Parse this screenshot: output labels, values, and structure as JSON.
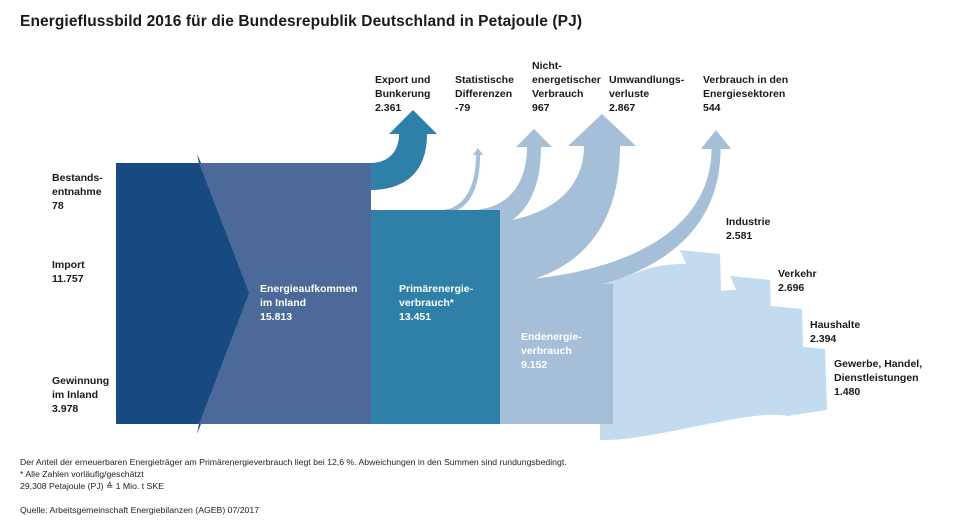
{
  "title": "Energieflussbild 2016 für die Bundesrepublik Deutschland in Petajoule (PJ)",
  "colors": {
    "aufkommen_input": "#174a80",
    "aufkommen_inland": "#4c6a99",
    "primaer": "#2e80a9",
    "export": "#2e80a9",
    "losses": "#a4bfd7",
    "endenergie": "#a4bfd7",
    "sectors": "#c3dbee"
  },
  "inputs": [
    {
      "label_lines": [
        "Bestands-",
        "entnahme"
      ],
      "value": "78"
    },
    {
      "label_lines": [
        "Import"
      ],
      "value": "11.757"
    },
    {
      "label_lines": [
        "Gewinnung",
        "im Inland"
      ],
      "value": "3.978"
    }
  ],
  "blocks": [
    {
      "label_lines": [
        "Energieaufkommen",
        "im Inland"
      ],
      "value": "15.813"
    },
    {
      "label_lines": [
        "Primärenergie-",
        "verbrauch*"
      ],
      "value": "13.451"
    },
    {
      "label_lines": [
        "Endenergie-",
        "verbrauch"
      ],
      "value": "9.152"
    }
  ],
  "outflows": [
    {
      "label_lines": [
        "Export und",
        "Bunkerung"
      ],
      "value": "2.361"
    },
    {
      "label_lines": [
        "Statistische",
        "Differenzen"
      ],
      "value": "-79"
    },
    {
      "label_lines": [
        "Nicht-",
        "energetischer",
        "Verbrauch"
      ],
      "value": "967"
    },
    {
      "label_lines": [
        "Umwandlungs-",
        "verluste"
      ],
      "value": "2.867"
    },
    {
      "label_lines": [
        "Verbrauch in den",
        "Energiesektoren"
      ],
      "value": "544"
    }
  ],
  "sectors": [
    {
      "label_lines": [
        "Industrie"
      ],
      "value": "2.581"
    },
    {
      "label_lines": [
        "Verkehr"
      ],
      "value": "2.696"
    },
    {
      "label_lines": [
        "Haushalte"
      ],
      "value": "2.394"
    },
    {
      "label_lines": [
        "Gewerbe, Handel,",
        "Dienstleistungen"
      ],
      "value": "1.480"
    }
  ],
  "footnotes": {
    "line1": "Der Anteil der erneuerbaren Energieträger am Primärenergieverbrauch liegt bei 12,6 %. Abweichungen in den Summen sind rundungsbedingt.",
    "line2": "* Alle Zahlen vorläufig/geschätzt",
    "line3": "29,308 Petajoule (PJ) ≙ 1 Mio. t SKE",
    "source": "Quelle: Arbeitsgemeinschaft Energiebilanzen (AGEB) 07/2017"
  },
  "chart_data": {
    "type": "sankey",
    "title": "Energieflussbild 2016 für die Bundesrepublik Deutschland in Petajoule (PJ)",
    "unit": "PJ",
    "nodes": [
      "Bestandsentnahme",
      "Import",
      "Gewinnung im Inland",
      "Energieaufkommen im Inland",
      "Primärenergieverbrauch",
      "Endenergieverbrauch",
      "Export und Bunkerung",
      "Statistische Differenzen",
      "Nichtenergetischer Verbrauch",
      "Umwandlungsverluste",
      "Verbrauch in den Energiesektoren",
      "Industrie",
      "Verkehr",
      "Haushalte",
      "Gewerbe, Handel, Dienstleistungen"
    ],
    "links": [
      {
        "source": "Bestandsentnahme",
        "target": "Energieaufkommen im Inland",
        "value": 78
      },
      {
        "source": "Import",
        "target": "Energieaufkommen im Inland",
        "value": 11757
      },
      {
        "source": "Gewinnung im Inland",
        "target": "Energieaufkommen im Inland",
        "value": 3978
      },
      {
        "source": "Energieaufkommen im Inland",
        "target": "Export und Bunkerung",
        "value": 2361
      },
      {
        "source": "Energieaufkommen im Inland",
        "target": "Primärenergieverbrauch",
        "value": 13451
      },
      {
        "source": "Primärenergieverbrauch",
        "target": "Statistische Differenzen",
        "value": -79
      },
      {
        "source": "Primärenergieverbrauch",
        "target": "Nichtenergetischer Verbrauch",
        "value": 967
      },
      {
        "source": "Primärenergieverbrauch",
        "target": "Umwandlungsverluste",
        "value": 2867
      },
      {
        "source": "Primärenergieverbrauch",
        "target": "Verbrauch in den Energiesektoren",
        "value": 544
      },
      {
        "source": "Primärenergieverbrauch",
        "target": "Endenergieverbrauch",
        "value": 9152
      },
      {
        "source": "Endenergieverbrauch",
        "target": "Industrie",
        "value": 2581
      },
      {
        "source": "Endenergieverbrauch",
        "target": "Verkehr",
        "value": 2696
      },
      {
        "source": "Endenergieverbrauch",
        "target": "Haushalte",
        "value": 2394
      },
      {
        "source": "Endenergieverbrauch",
        "target": "Gewerbe, Handel, Dienstleistungen",
        "value": 1480
      }
    ],
    "renewable_share_primary_percent": 12.6
  }
}
